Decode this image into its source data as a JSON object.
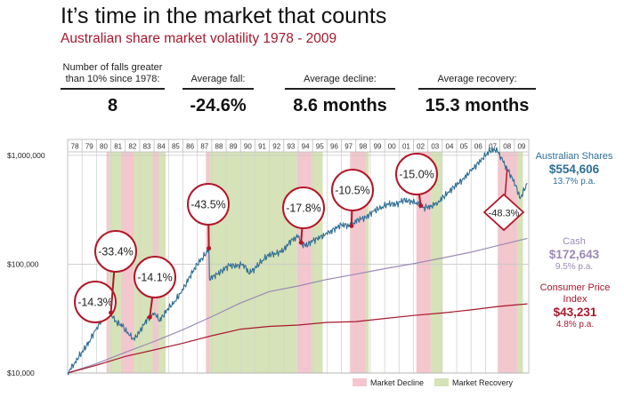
{
  "header": {
    "title": "It’s time in the market that counts",
    "subtitle": "Australian share market volatility 1978 - 2009"
  },
  "stats": [
    {
      "label": "Number of falls greater\nthan 10% since 1978:",
      "value": "8"
    },
    {
      "label": "Average fall:",
      "value": "-24.6%"
    },
    {
      "label": "Average decline:",
      "value": "8.6 months"
    },
    {
      "label": "Average recovery:",
      "value": "15.3 months"
    }
  ],
  "colors": {
    "shares": "#2f6f95",
    "cash": "#9b8ab6",
    "cpi": "#a6192e",
    "decline_band": "#f4c6cd",
    "recovery_band": "#d6e2b7",
    "callout": "#b0182a",
    "title_accent": "#a6192e"
  },
  "chart_data": {
    "type": "line",
    "y_scale": "log",
    "ylim": [
      10000,
      1400000
    ],
    "xlim": [
      1978,
      2010
    ],
    "y_ticks": [
      10000,
      100000,
      1000000
    ],
    "y_tick_labels": [
      "$10,000",
      "$100,000",
      "$1,000,000"
    ],
    "x_tick_labels": [
      "78",
      "79",
      "80",
      "81",
      "82",
      "83",
      "84",
      "85",
      "86",
      "87",
      "88",
      "89",
      "90",
      "91",
      "92",
      "93",
      "94",
      "95",
      "96",
      "97",
      "98",
      "99",
      "00",
      "01",
      "02",
      "03",
      "04",
      "05",
      "06",
      "07",
      "08",
      "09"
    ],
    "grid": true,
    "series": [
      {
        "name": "Australian Shares",
        "end_value": "$554,606",
        "rate": "13.7% p.a.",
        "x": [
          1978.0,
          1978.5,
          1979.0,
          1979.5,
          1980.0,
          1980.5,
          1980.9,
          1981.3,
          1981.8,
          1982.3,
          1982.6,
          1983.0,
          1983.5,
          1984.0,
          1984.4,
          1984.9,
          1985.4,
          1986.0,
          1986.5,
          1987.0,
          1987.5,
          1987.8,
          1987.84,
          1988.2,
          1988.7,
          1989.2,
          1989.7,
          1990.2,
          1990.6,
          1991.0,
          1991.5,
          1992.0,
          1992.5,
          1993.0,
          1993.5,
          1994.0,
          1994.3,
          1994.7,
          1995.0,
          1995.5,
          1996.0,
          1996.5,
          1997.0,
          1997.7,
          1998.0,
          1998.7,
          1999.2,
          1999.8,
          2000.3,
          2000.8,
          2001.3,
          2001.8,
          2002.2,
          2002.7,
          2003.2,
          2003.7,
          2004.2,
          2004.8,
          2005.4,
          2006.0,
          2006.5,
          2006.8,
          2007.3,
          2007.8,
          2008.2,
          2008.6,
          2009.1,
          2009.4,
          2009.9
        ],
        "values": [
          10000,
          12500,
          15500,
          19500,
          26000,
          32000,
          38000,
          30000,
          27000,
          22000,
          20500,
          24000,
          31000,
          35000,
          30500,
          38000,
          45000,
          58000,
          78000,
          100000,
          120000,
          140000,
          73000,
          78000,
          87000,
          98000,
          96000,
          100000,
          82000,
          92000,
          108000,
          123000,
          125000,
          135000,
          165000,
          180000,
          148000,
          152000,
          165000,
          175000,
          190000,
          210000,
          230000,
          225000,
          250000,
          270000,
          305000,
          335000,
          360000,
          355000,
          390000,
          375000,
          370000,
          330000,
          340000,
          370000,
          430000,
          510000,
          600000,
          720000,
          850000,
          940000,
          1100000,
          1130000,
          880000,
          710000,
          530000,
          400000,
          554606
        ]
      },
      {
        "name": "Cash",
        "end_value": "$172,643",
        "rate": "9.5% p.a.",
        "x": [
          1978,
          1980,
          1982,
          1984,
          1986,
          1988,
          1990,
          1992,
          1994,
          1996,
          1998,
          2000,
          2002,
          2004,
          2006,
          2008,
          2009.9
        ],
        "values": [
          10000,
          12200,
          15500,
          19500,
          25000,
          33000,
          44000,
          56000,
          63000,
          72500,
          81000,
          91000,
          101000,
          114000,
          129000,
          150000,
          172643
        ]
      },
      {
        "name": "Consumer Price Index",
        "end_value": "$43,231",
        "rate": "4.8% p.a.",
        "x": [
          1978,
          1980,
          1982,
          1984,
          1986,
          1988,
          1990,
          1992,
          1994,
          1996,
          1998,
          2000,
          2002,
          2004,
          2006,
          2008,
          2009.9
        ],
        "values": [
          10000,
          11800,
          14200,
          16300,
          18800,
          22000,
          25300,
          26800,
          27600,
          29200,
          29700,
          31700,
          33800,
          35600,
          38000,
          41000,
          43231
        ]
      }
    ],
    "falls": [
      {
        "label": "-14.3%",
        "year": 1980.5
      },
      {
        "label": "-33.4%",
        "year": 1981.0
      },
      {
        "label": "-14.1%",
        "year": 1983.7
      },
      {
        "label": "-43.5%",
        "year": 1987.8
      },
      {
        "label": "-17.8%",
        "year": 1994.2
      },
      {
        "label": "-10.5%",
        "year": 1997.7
      },
      {
        "label": "-15.0%",
        "year": 2002.5
      },
      {
        "label": "-48.3%",
        "year": 2008.5
      }
    ],
    "decline_periods": [
      [
        1980.7,
        1980.85
      ],
      [
        1981.7,
        1982.6
      ],
      [
        1983.9,
        1984.3
      ],
      [
        1987.6,
        1987.85
      ],
      [
        1993.9,
        1994.9
      ],
      [
        1997.6,
        1998.7
      ],
      [
        2002.2,
        2003.2
      ],
      [
        2007.85,
        2009.2
      ]
    ],
    "recovery_periods": [
      [
        1980.85,
        1981.7
      ],
      [
        1982.6,
        1983.9
      ],
      [
        1984.3,
        1984.8
      ],
      [
        1987.85,
        1993.9
      ],
      [
        1994.9,
        1995.7
      ],
      [
        1998.7,
        1998.9
      ],
      [
        2003.2,
        2004.0
      ],
      [
        2009.2,
        2009.6
      ]
    ],
    "legend": [
      {
        "label": "Market Decline",
        "color": "#f4c6cd"
      },
      {
        "label": "Market Recovery",
        "color": "#d6e2b7"
      }
    ]
  }
}
